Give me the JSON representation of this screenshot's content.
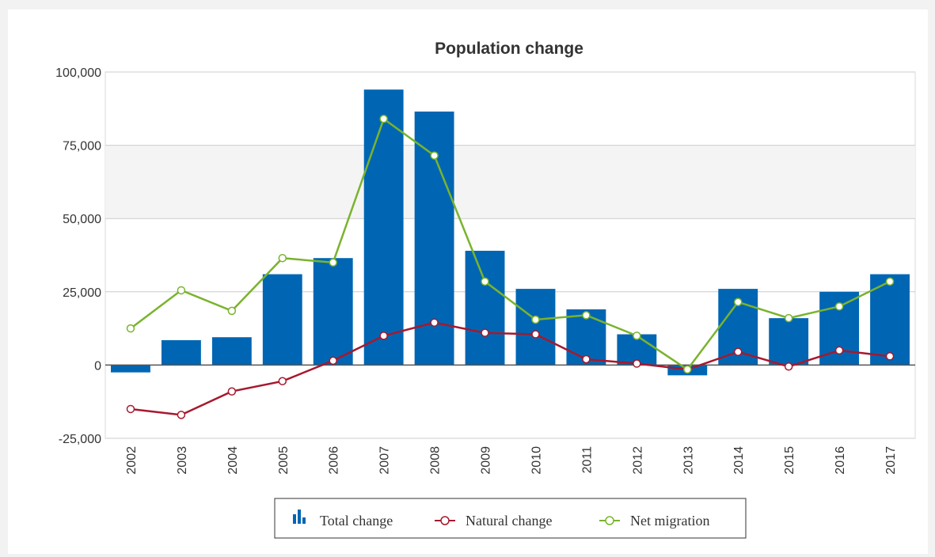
{
  "chart_data": {
    "type": "bar",
    "title": "Population change",
    "categories": [
      "2002",
      "2003",
      "2004",
      "2005",
      "2006",
      "2007",
      "2008",
      "2009",
      "2010",
      "2011",
      "2012",
      "2013",
      "2014",
      "2015",
      "2016",
      "2017"
    ],
    "series": [
      {
        "name": "Total change",
        "type": "bar",
        "color": "#0066b3",
        "values": [
          -2500,
          8500,
          9500,
          31000,
          36500,
          94000,
          86500,
          39000,
          26000,
          19000,
          10500,
          -3500,
          26000,
          16000,
          25000,
          31000
        ]
      },
      {
        "name": "Natural change",
        "type": "line",
        "color": "#a6192e",
        "values": [
          -15000,
          -17000,
          -9000,
          -5500,
          1500,
          10000,
          14500,
          11000,
          10500,
          2000,
          500,
          -1500,
          4500,
          -500,
          5000,
          3000
        ]
      },
      {
        "name": "Net migration",
        "type": "line",
        "color": "#7ab32e",
        "values": [
          12500,
          25500,
          18500,
          36500,
          35000,
          84000,
          71500,
          28500,
          15500,
          17000,
          10000,
          -1500,
          21500,
          16000,
          20000,
          28500
        ]
      }
    ],
    "y_ticks": [
      "100,000",
      "75,000",
      "50,000",
      "25,000",
      "0",
      "-25,000"
    ],
    "y_tick_values": [
      100000,
      75000,
      50000,
      25000,
      0,
      -25000
    ],
    "ylim": [
      -25000,
      100000
    ],
    "grid": true,
    "legend_position": "bottom"
  }
}
